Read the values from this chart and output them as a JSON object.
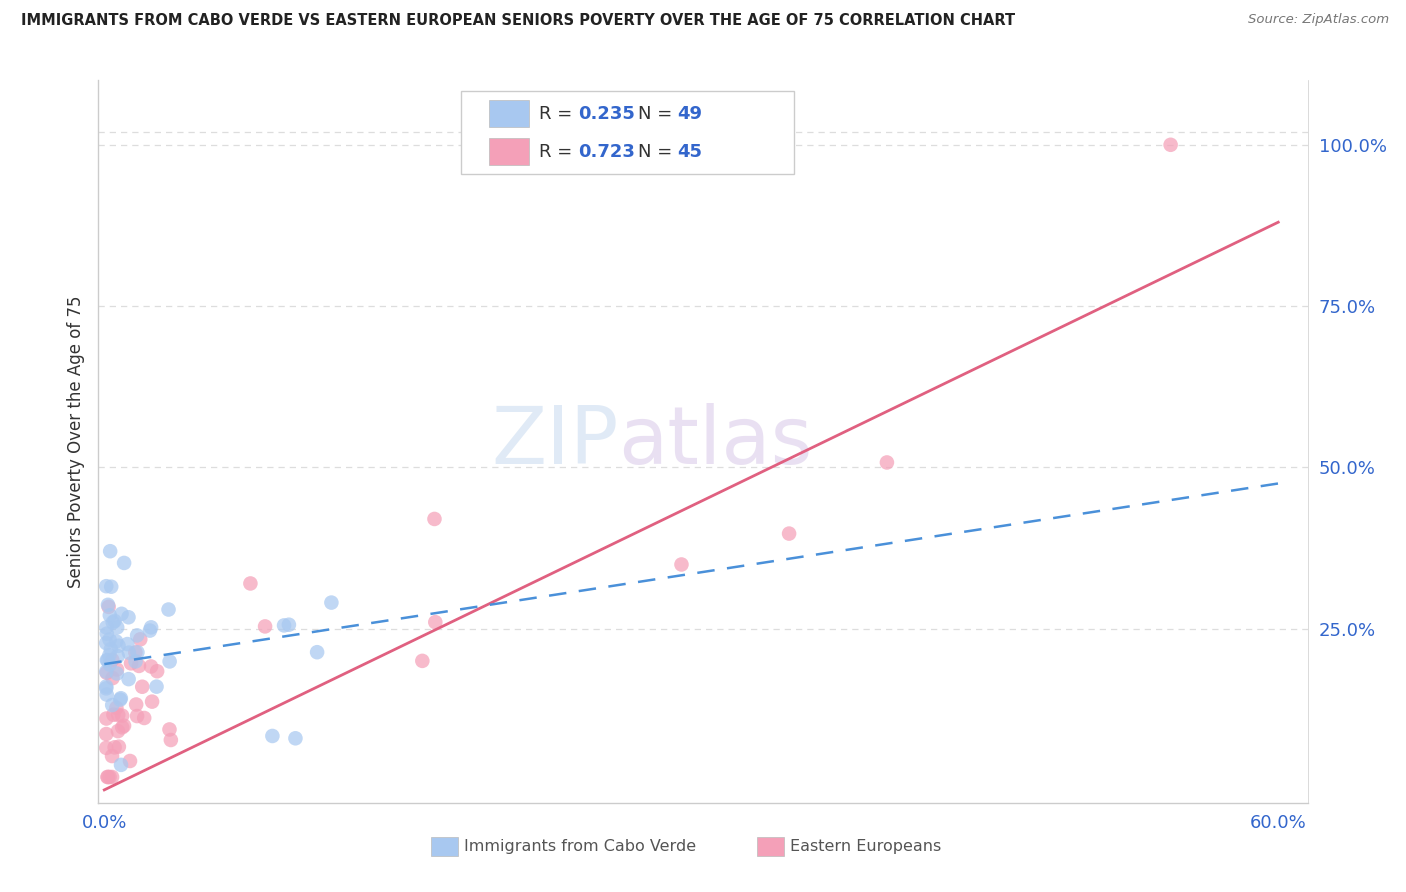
{
  "title": "IMMIGRANTS FROM CABO VERDE VS EASTERN EUROPEAN SENIORS POVERTY OVER THE AGE OF 75 CORRELATION CHART",
  "source": "Source: ZipAtlas.com",
  "ylabel": "Seniors Poverty Over the Age of 75",
  "watermark_zip": "ZIP",
  "watermark_atlas": "atlas",
  "xlim": [
    -0.003,
    0.615
  ],
  "ylim": [
    -0.02,
    1.1
  ],
  "yticks": [
    0.0,
    0.25,
    0.5,
    0.75,
    1.0
  ],
  "ytick_labels": [
    "",
    "25.0%",
    "50.0%",
    "75.0%",
    "100.0%"
  ],
  "xticks": [
    0.0,
    0.1,
    0.2,
    0.3,
    0.4,
    0.5,
    0.6
  ],
  "xtick_left_label": "0.0%",
  "xtick_right_label": "60.0%",
  "blue_R": 0.235,
  "blue_N": 49,
  "pink_R": 0.723,
  "pink_N": 45,
  "blue_color": "#a8c8f0",
  "pink_color": "#f4a0b8",
  "blue_line_color": "#4a90d9",
  "pink_line_color": "#e06080",
  "grid_color": "#dddddd",
  "title_color": "#222222",
  "legend_text_color": "#3366cc",
  "legend_label_color": "#333333",
  "background_color": "#ffffff",
  "pink_line_x0": 0.0,
  "pink_line_y0": 0.0,
  "pink_line_x1": 0.6,
  "pink_line_y1": 0.88,
  "blue_line_x0": 0.0,
  "blue_line_y0": 0.195,
  "blue_line_x1": 0.6,
  "blue_line_y1": 0.475,
  "legend_entries": [
    {
      "color": "#a8c8f0",
      "R": "0.235",
      "N": "49"
    },
    {
      "color": "#f4a0b8",
      "R": "0.723",
      "N": "45"
    }
  ],
  "bottom_legend": [
    {
      "color": "#a8c8f0",
      "label": "Immigrants from Cabo Verde"
    },
    {
      "color": "#f4a0b8",
      "label": "Eastern Europeans"
    }
  ]
}
